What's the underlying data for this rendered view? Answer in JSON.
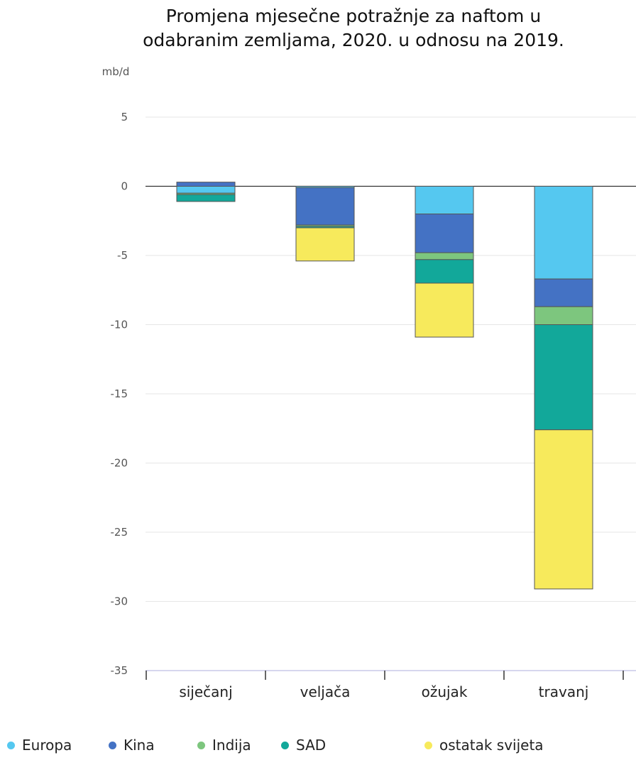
{
  "chart_data": {
    "type": "bar",
    "stacked": true,
    "title_lines": [
      "Promjena mjesečne potražnje za naftom u",
      "odabranim zemljama, 2020. u odnosu na 2019."
    ],
    "ylabel": "mb/d",
    "ylim": [
      -35,
      5
    ],
    "yticks": [
      5,
      0,
      -5,
      -10,
      -15,
      -20,
      -25,
      -30,
      -35
    ],
    "grid": true,
    "legend_position": "bottom",
    "categories": [
      "siječanj",
      "veljača",
      "ožujak",
      "travanj"
    ],
    "series": [
      {
        "name": "Europa",
        "color": "#55c8f0",
        "values": [
          -0.5,
          -0.1,
          -2.0,
          -6.7
        ]
      },
      {
        "name": "Kina",
        "color": "#4472c4",
        "values": [
          0.3,
          -2.7,
          -2.8,
          -2.0
        ]
      },
      {
        "name": "Indija",
        "color": "#7dc67e",
        "values": [
          -0.1,
          -0.1,
          -0.5,
          -1.3
        ]
      },
      {
        "name": "SAD",
        "color": "#12a89a",
        "values": [
          -0.5,
          -0.1,
          -1.7,
          -7.6
        ]
      },
      {
        "name": "ostatak svijeta",
        "color": "#f7ea5c",
        "values": [
          0.0,
          -2.4,
          -3.9,
          -11.5
        ]
      }
    ]
  }
}
